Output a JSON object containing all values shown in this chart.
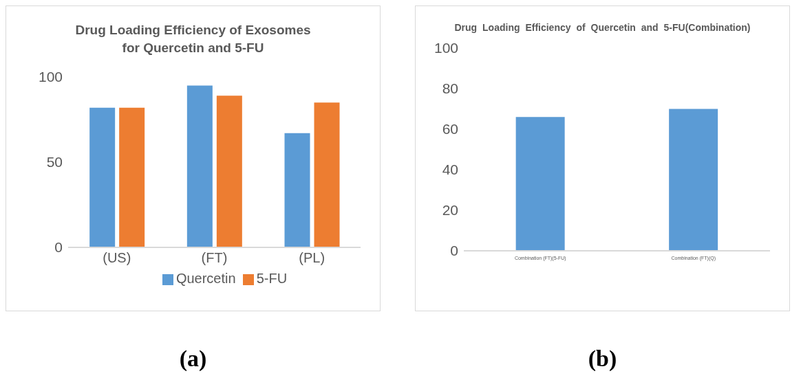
{
  "chart_data": [
    {
      "type": "bar",
      "title": "Drug Loading Efficiency of Exosomes for Quercetin and 5-FU",
      "categories": [
        "(US)",
        "(FT)",
        "(PL)"
      ],
      "series": [
        {
          "name": "Quercetin",
          "color": "#5b9bd5",
          "values": [
            82,
            95,
            67
          ]
        },
        {
          "name": "5-FU",
          "color": "#ed7d31",
          "values": [
            82,
            89,
            85
          ]
        }
      ],
      "ylim": [
        0,
        100
      ],
      "yticks": [
        0,
        50,
        100
      ],
      "grid": false,
      "legend": "bottom",
      "annotations": [
        "(a)"
      ]
    },
    {
      "type": "bar",
      "title": "Drug Loading Efficiency of Quercetin and 5-FU(Combination)",
      "categories": [
        "Combination (FT)(5-FU)",
        "Combination (FT)(Q)"
      ],
      "series": [
        {
          "color": "#5b9bd5",
          "values": [
            66,
            70
          ]
        }
      ],
      "ylim": [
        0,
        100
      ],
      "yticks": [
        0,
        20,
        40,
        60,
        80,
        100
      ],
      "grid": false,
      "annotations": [
        "(b)"
      ]
    }
  ]
}
